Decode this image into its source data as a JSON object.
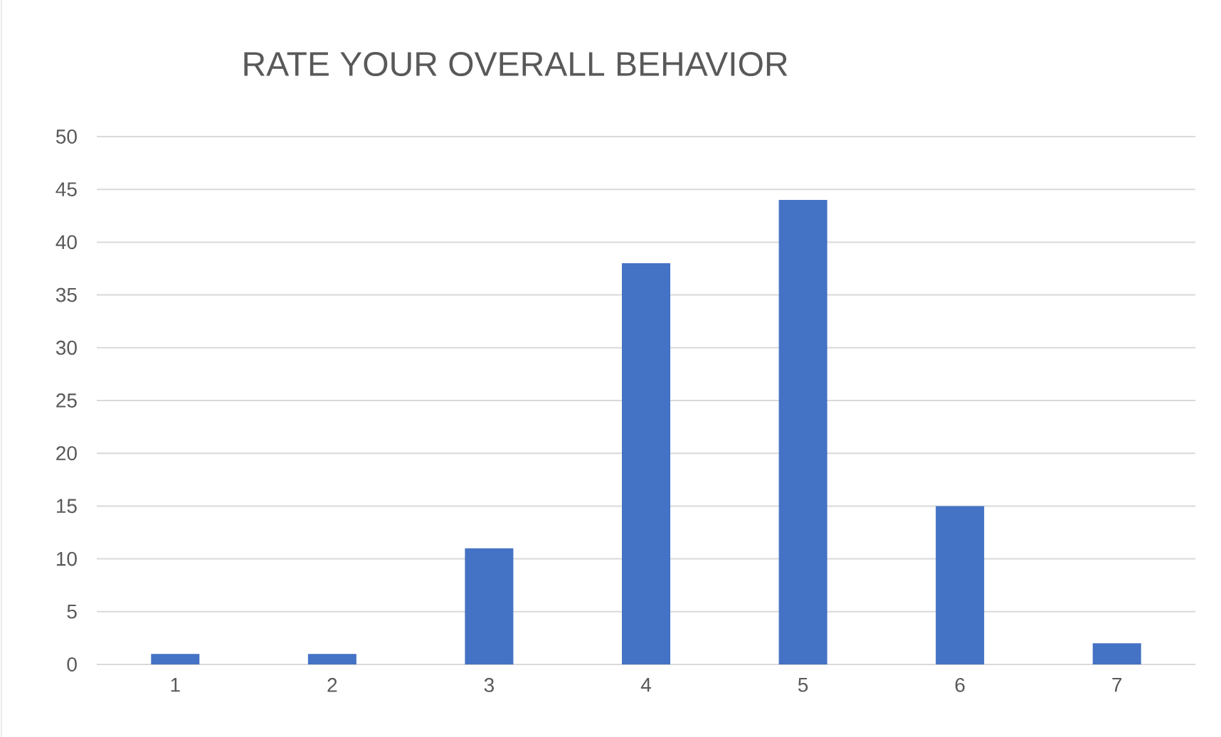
{
  "chart_data": {
    "type": "bar",
    "title": "RATE YOUR OVERALL BEHAVIOR",
    "categories": [
      "1",
      "2",
      "3",
      "4",
      "5",
      "6",
      "7"
    ],
    "values": [
      1,
      1,
      11,
      38,
      44,
      15,
      2
    ],
    "color": "#4472c4",
    "ylim": [
      0,
      50
    ],
    "yticks": [
      0,
      5,
      10,
      15,
      20,
      25,
      30,
      35,
      40,
      45,
      50
    ],
    "grid": "y"
  }
}
